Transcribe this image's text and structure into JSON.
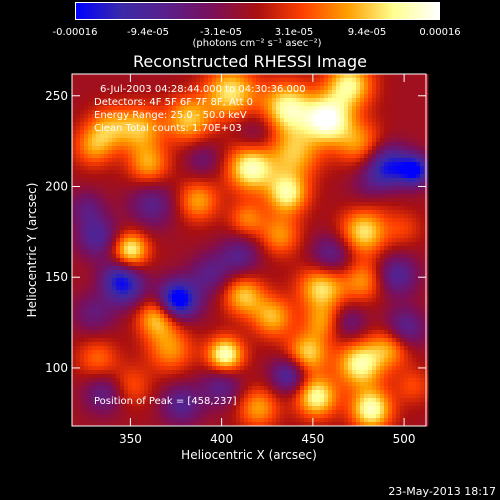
{
  "colorbar": {
    "tick_labels": [
      "-0.00016",
      "-9.4e-05",
      "-3.1e-05",
      "3.1e-05",
      "9.4e-05",
      "0.00016"
    ],
    "unit_label": "(photons cm⁻² s⁻¹ asec⁻²)",
    "range": [
      -0.00016,
      0.00016
    ],
    "colors": [
      "#0000ff",
      "#3a2aa8",
      "#5a1f8a",
      "#7a0f5a",
      "#aa1010",
      "#ff4000",
      "#ffa000",
      "#ffff90",
      "#ffffff"
    ]
  },
  "chart_data": {
    "type": "heatmap",
    "title": "Reconstructed RHESSI Image",
    "xlabel": "Heliocentric X (arcsec)",
    "ylabel": "Heliocentric Y (arcsec)",
    "xlim": [
      318,
      512
    ],
    "ylim": [
      68,
      262
    ],
    "x_ticks": [
      350,
      400,
      450,
      500
    ],
    "y_ticks": [
      100,
      150,
      200,
      250
    ],
    "annotations": [
      "6-Jul-2003 04:28:44.000 to 04:30:36.000",
      "Detectors: 4F 5F 6F 7F 8F, Att 0",
      "Energy Range: 25.0 - 50.0 keV",
      "Clean    Total counts: 1.70E+03"
    ],
    "peak_label": "Position of Peak = [458,237]",
    "peak": [
      458,
      237
    ],
    "blobs": [
      [
        458,
        237,
        1.0,
        9
      ],
      [
        436,
        243,
        0.85,
        10
      ],
      [
        470,
        256,
        0.8,
        9
      ],
      [
        405,
        252,
        0.75,
        10
      ],
      [
        382,
        237,
        0.65,
        9
      ],
      [
        355,
        232,
        0.6,
        9
      ],
      [
        338,
        233,
        0.45,
        8
      ],
      [
        330,
        222,
        0.5,
        8
      ],
      [
        360,
        212,
        0.55,
        8
      ],
      [
        416,
        210,
        0.9,
        9
      ],
      [
        440,
        218,
        0.6,
        10
      ],
      [
        475,
        224,
        0.5,
        9
      ],
      [
        436,
        196,
        0.8,
        8
      ],
      [
        387,
        192,
        0.55,
        8
      ],
      [
        414,
        182,
        0.45,
        7
      ],
      [
        350,
        165,
        0.85,
        7
      ],
      [
        478,
        175,
        0.75,
        9
      ],
      [
        432,
        173,
        0.5,
        8
      ],
      [
        488,
        196,
        0.4,
        8
      ],
      [
        500,
        177,
        0.25,
        7
      ],
      [
        412,
        140,
        0.65,
        8
      ],
      [
        455,
        144,
        0.75,
        9
      ],
      [
        478,
        148,
        0.5,
        8
      ],
      [
        365,
        128,
        0.7,
        8
      ],
      [
        428,
        128,
        0.6,
        8
      ],
      [
        455,
        125,
        0.45,
        7
      ],
      [
        402,
        107,
        0.95,
        7
      ],
      [
        372,
        110,
        0.5,
        9
      ],
      [
        447,
        108,
        0.7,
        8
      ],
      [
        476,
        102,
        0.85,
        9
      ],
      [
        493,
        112,
        0.6,
        8
      ],
      [
        332,
        105,
        0.4,
        8
      ],
      [
        350,
        90,
        0.35,
        8
      ],
      [
        420,
        78,
        0.55,
        8
      ],
      [
        452,
        84,
        0.85,
        8
      ],
      [
        482,
        77,
        0.9,
        8
      ],
      [
        505,
        90,
        0.3,
        7
      ],
      [
        362,
        190,
        -0.45,
        9
      ],
      [
        332,
        172,
        -0.55,
        8
      ],
      [
        326,
        188,
        -0.35,
        7
      ],
      [
        460,
        162,
        -0.5,
        8
      ],
      [
        492,
        212,
        -0.7,
        8
      ],
      [
        486,
        200,
        -0.6,
        9
      ],
      [
        506,
        209,
        -0.9,
        6
      ],
      [
        375,
        137,
        -0.8,
        7
      ],
      [
        378,
        138,
        -0.4,
        9
      ],
      [
        394,
        152,
        -0.4,
        8
      ],
      [
        410,
        162,
        -0.45,
        8
      ],
      [
        348,
        144,
        -0.6,
        8
      ],
      [
        343,
        150,
        -0.45,
        7
      ],
      [
        496,
        151,
        -0.55,
        8
      ],
      [
        500,
        121,
        -0.6,
        8
      ],
      [
        437,
        96,
        -0.65,
        7
      ],
      [
        400,
        90,
        -0.45,
        8
      ],
      [
        378,
        80,
        -0.5,
        8
      ],
      [
        336,
        86,
        -0.45,
        8
      ],
      [
        330,
        130,
        -0.35,
        8
      ],
      [
        470,
        125,
        -0.35,
        7
      ],
      [
        420,
        230,
        -0.3,
        8
      ],
      [
        390,
        215,
        -0.3,
        7
      ]
    ]
  },
  "footer_date": "23-May-2013 18:17"
}
